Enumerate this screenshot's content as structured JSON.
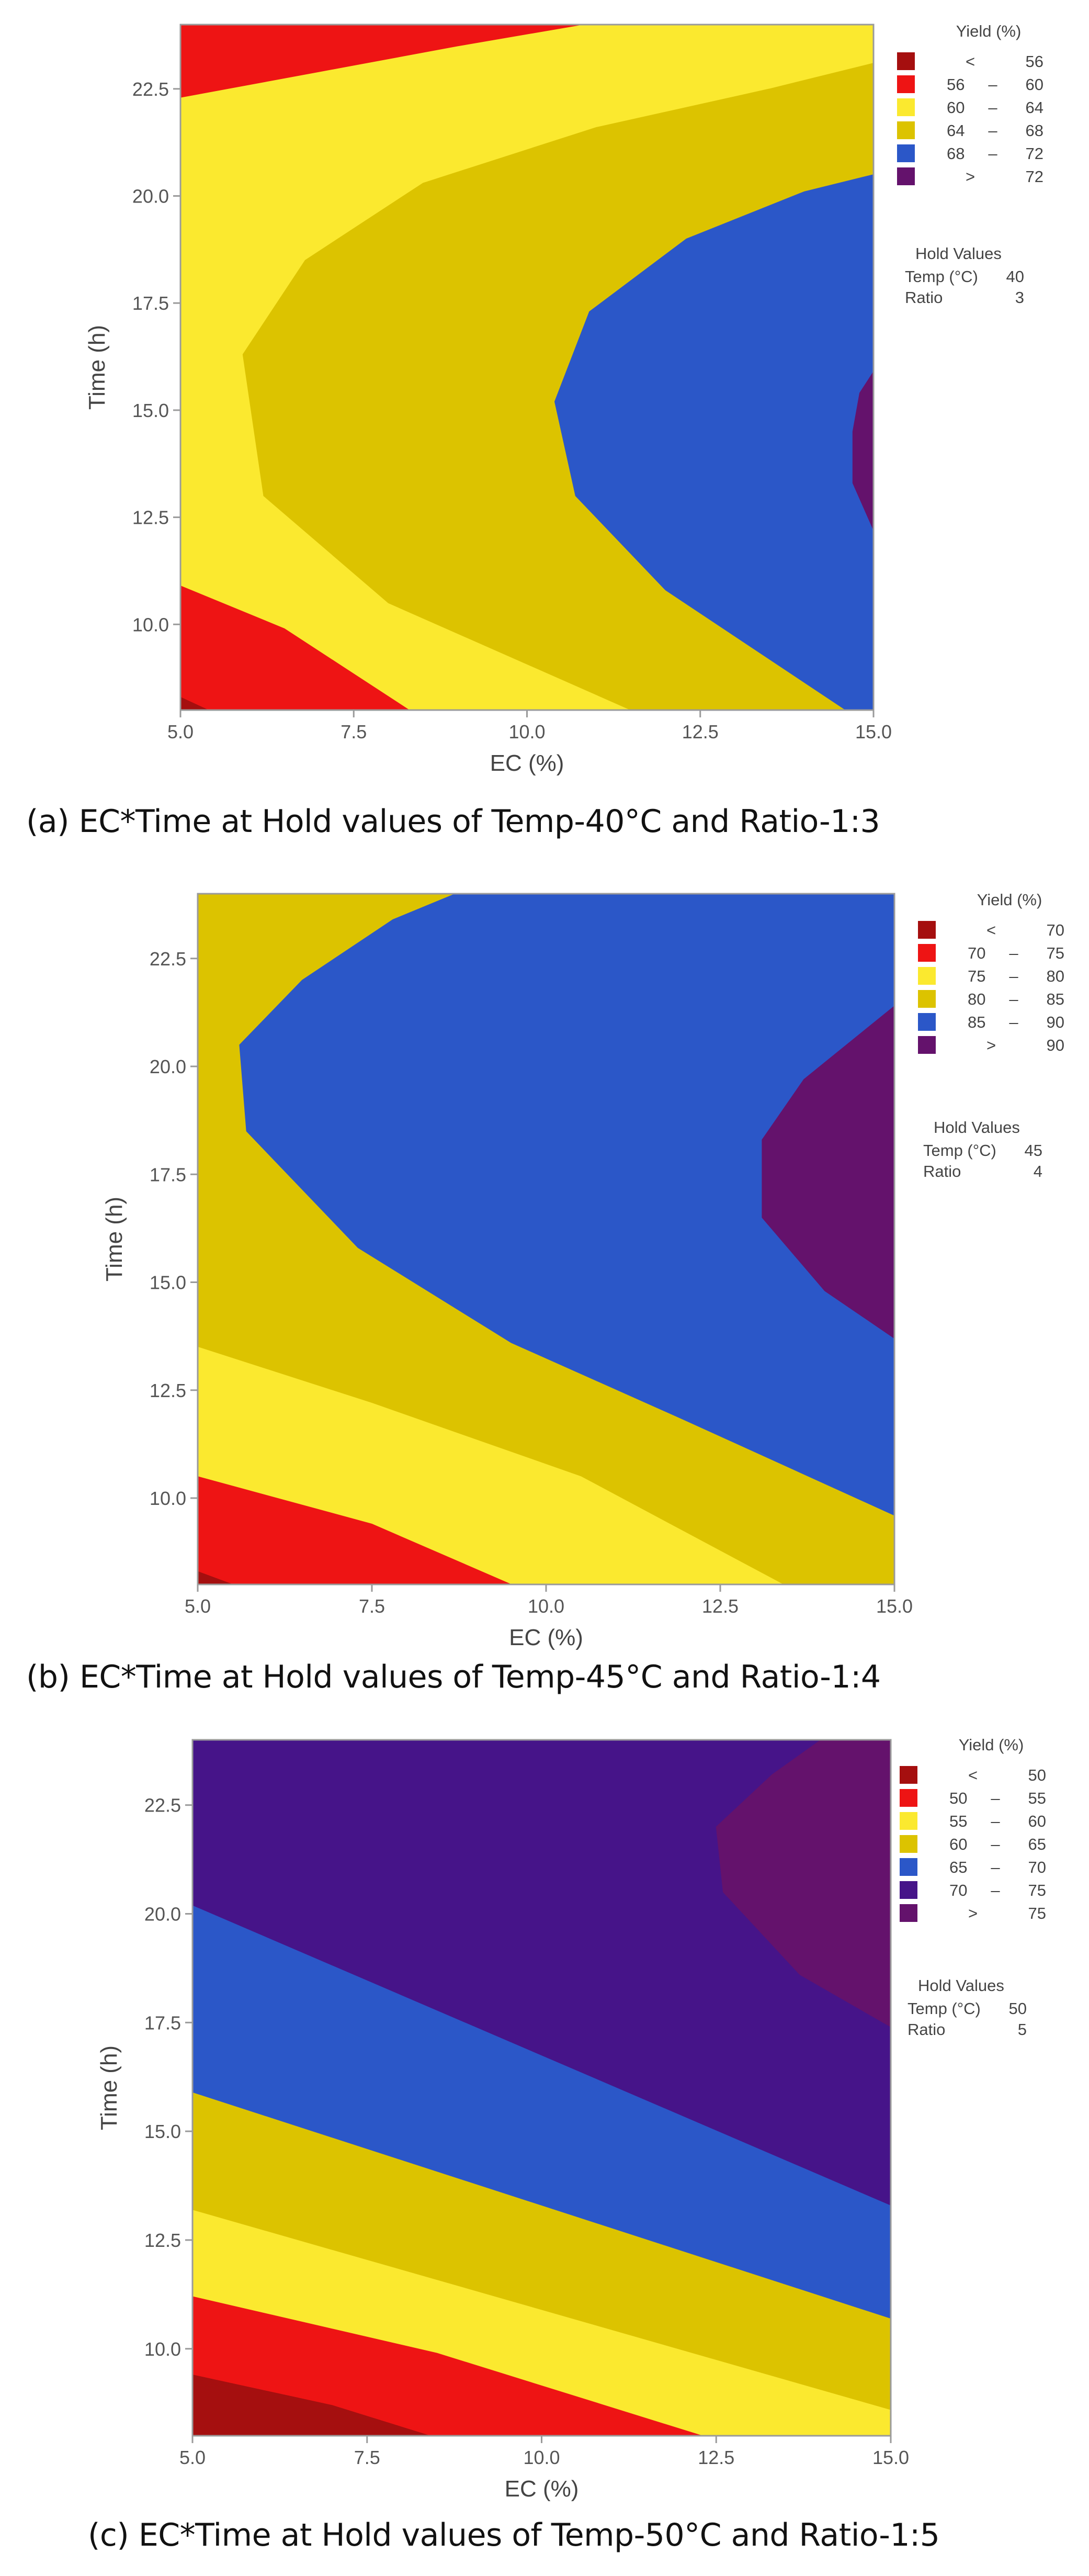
{
  "chart_data": [
    {
      "type": "contour",
      "panel": "a",
      "xlabel": "EC (%)",
      "ylabel": "Time (h)",
      "xlim": [
        5,
        15
      ],
      "ylim": [
        8,
        24
      ],
      "xticks": [
        "5.0",
        "7.5",
        "10.0",
        "12.5",
        "15.0"
      ],
      "yticks": [
        "10.0",
        "12.5",
        "15.0",
        "17.5",
        "20.0",
        "22.5"
      ],
      "legend": {
        "title": "Yield (%)",
        "position": "right",
        "items": [
          {
            "op": "<",
            "low": "",
            "high": "56",
            "color": "#a50f0f"
          },
          {
            "op": "",
            "low": "56",
            "high": "60",
            "color": "#ee1414"
          },
          {
            "op": "",
            "low": "60",
            "high": "64",
            "color": "#fbe92f"
          },
          {
            "op": "",
            "low": "64",
            "high": "68",
            "color": "#dcc300"
          },
          {
            "op": "",
            "low": "68",
            "high": "72",
            "color": "#2b57c8"
          },
          {
            "op": ">",
            "low": "",
            "high": "72",
            "color": "#64126c"
          }
        ]
      },
      "hold": {
        "title": "Hold Values",
        "rows": [
          {
            "label": "Temp (°C)",
            "value": "40"
          },
          {
            "label": "Ratio",
            "value": "3"
          }
        ]
      },
      "caption": "(a) EC*Time at Hold values of Temp-40°C and Ratio-1:3",
      "regions": [
        {
          "color": "#fbe92f",
          "boundary": [
            [
              5,
              8
            ],
            [
              15,
              8
            ],
            [
              15,
              24
            ],
            [
              5,
              24
            ]
          ]
        },
        {
          "color": "#ee1414",
          "boundary": [
            [
              5,
              24
            ],
            [
              5,
              22.3
            ],
            [
              7,
              22.9
            ],
            [
              9,
              23.5
            ],
            [
              10.8,
              24
            ]
          ]
        },
        {
          "color": "#ee1414",
          "boundary": [
            [
              5,
              8
            ],
            [
              5,
              10.9
            ],
            [
              6.5,
              9.9
            ],
            [
              8.3,
              8
            ]
          ]
        },
        {
          "color": "#a50f0f",
          "boundary": [
            [
              5,
              8
            ],
            [
              5,
              8.3
            ],
            [
              5.4,
              8
            ]
          ]
        },
        {
          "color": "#dcc300",
          "boundary": [
            [
              15,
              8
            ],
            [
              11.5,
              8
            ],
            [
              8,
              10.5
            ],
            [
              6.2,
              13
            ],
            [
              5.9,
              16.3
            ],
            [
              6.8,
              18.5
            ],
            [
              8.5,
              20.3
            ],
            [
              11,
              21.6
            ],
            [
              13.5,
              22.5
            ],
            [
              15,
              23.1
            ]
          ]
        },
        {
          "color": "#2b57c8",
          "boundary": [
            [
              15,
              8
            ],
            [
              14.6,
              8
            ],
            [
              12,
              10.8
            ],
            [
              10.7,
              13
            ],
            [
              10.4,
              15.2
            ],
            [
              10.9,
              17.3
            ],
            [
              12.3,
              19
            ],
            [
              14,
              20.1
            ],
            [
              15,
              20.5
            ]
          ]
        },
        {
          "color": "#64126c",
          "boundary": [
            [
              15,
              12.2
            ],
            [
              14.7,
              13.3
            ],
            [
              14.7,
              14.5
            ],
            [
              14.8,
              15.4
            ],
            [
              15,
              15.9
            ]
          ]
        }
      ]
    },
    {
      "type": "contour",
      "panel": "b",
      "xlabel": "EC (%)",
      "ylabel": "Time (h)",
      "xlim": [
        5,
        15
      ],
      "ylim": [
        8,
        24
      ],
      "xticks": [
        "5.0",
        "7.5",
        "10.0",
        "12.5",
        "15.0"
      ],
      "yticks": [
        "10.0",
        "12.5",
        "15.0",
        "17.5",
        "20.0",
        "22.5"
      ],
      "legend": {
        "title": "Yield (%)",
        "position": "right",
        "items": [
          {
            "op": "<",
            "low": "",
            "high": "70",
            "color": "#a50f0f"
          },
          {
            "op": "",
            "low": "70",
            "high": "75",
            "color": "#ee1414"
          },
          {
            "op": "",
            "low": "75",
            "high": "80",
            "color": "#fbe92f"
          },
          {
            "op": "",
            "low": "80",
            "high": "85",
            "color": "#dcc300"
          },
          {
            "op": "",
            "low": "85",
            "high": "90",
            "color": "#2b57c8"
          },
          {
            "op": ">",
            "low": "",
            "high": "90",
            "color": "#64126c"
          }
        ]
      },
      "hold": {
        "title": "Hold Values",
        "rows": [
          {
            "label": "Temp (°C)",
            "value": "45"
          },
          {
            "label": "Ratio",
            "value": "4"
          }
        ]
      },
      "caption": "(b) EC*Time at Hold values of Temp-45°C and Ratio-1:4",
      "regions": [
        {
          "color": "#dcc300",
          "boundary": [
            [
              5,
              8
            ],
            [
              15,
              8
            ],
            [
              15,
              24
            ],
            [
              5,
              24
            ]
          ]
        },
        {
          "color": "#fbe92f",
          "boundary": [
            [
              5,
              8
            ],
            [
              5,
              13.5
            ],
            [
              7.5,
              12.2
            ],
            [
              10.5,
              10.5
            ],
            [
              13.4,
              8
            ]
          ]
        },
        {
          "color": "#ee1414",
          "boundary": [
            [
              5,
              8
            ],
            [
              5,
              10.5
            ],
            [
              7.5,
              9.4
            ],
            [
              9.5,
              8
            ]
          ]
        },
        {
          "color": "#a50f0f",
          "boundary": [
            [
              5,
              8
            ],
            [
              5,
              8.3
            ],
            [
              5.5,
              8
            ]
          ]
        },
        {
          "color": "#2b57c8",
          "boundary": [
            [
              15,
              9.6
            ],
            [
              12,
              11.8
            ],
            [
              9.5,
              13.6
            ],
            [
              7.3,
              15.8
            ],
            [
              5.7,
              18.5
            ],
            [
              5.6,
              20.5
            ],
            [
              6.5,
              22
            ],
            [
              7.8,
              23.4
            ],
            [
              8.7,
              24
            ],
            [
              15,
              24
            ]
          ]
        },
        {
          "color": "#64126c",
          "boundary": [
            [
              15,
              13.7
            ],
            [
              14,
              14.8
            ],
            [
              13.1,
              16.5
            ],
            [
              13.1,
              18.3
            ],
            [
              13.7,
              19.7
            ],
            [
              15,
              21.4
            ]
          ]
        }
      ]
    },
    {
      "type": "contour",
      "panel": "c",
      "xlabel": "EC (%)",
      "ylabel": "Time (h)",
      "xlim": [
        5,
        15
      ],
      "ylim": [
        8,
        24
      ],
      "xticks": [
        "5.0",
        "7.5",
        "10.0",
        "12.5",
        "15.0"
      ],
      "yticks": [
        "10.0",
        "12.5",
        "15.0",
        "17.5",
        "20.0",
        "22.5"
      ],
      "legend": {
        "title": "Yield (%)",
        "position": "right",
        "items": [
          {
            "op": "<",
            "low": "",
            "high": "50",
            "color": "#a50f0f"
          },
          {
            "op": "",
            "low": "50",
            "high": "55",
            "color": "#ee1414"
          },
          {
            "op": "",
            "low": "55",
            "high": "60",
            "color": "#fbe92f"
          },
          {
            "op": "",
            "low": "60",
            "high": "65",
            "color": "#dcc300"
          },
          {
            "op": "",
            "low": "65",
            "high": "70",
            "color": "#2b57c8"
          },
          {
            "op": "",
            "low": "70",
            "high": "75",
            "color": "#461489"
          },
          {
            "op": ">",
            "low": "",
            "high": "75",
            "color": "#64126c"
          }
        ]
      },
      "hold": {
        "title": "Hold Values",
        "rows": [
          {
            "label": "Temp (°C)",
            "value": "50"
          },
          {
            "label": "Ratio",
            "value": "5"
          }
        ]
      },
      "caption": "(c) EC*Time at Hold values of Temp-50°C and Ratio-1:5",
      "regions": [
        {
          "color": "#fbe92f",
          "boundary": [
            [
              5,
              8
            ],
            [
              15,
              8
            ],
            [
              15,
              24
            ],
            [
              5,
              24
            ]
          ]
        },
        {
          "color": "#ee1414",
          "boundary": [
            [
              5,
              8
            ],
            [
              5,
              11.2
            ],
            [
              8.5,
              9.9
            ],
            [
              12.3,
              8
            ]
          ]
        },
        {
          "color": "#a50f0f",
          "boundary": [
            [
              5,
              8
            ],
            [
              5,
              9.4
            ],
            [
              7,
              8.7
            ],
            [
              8.4,
              8
            ]
          ]
        },
        {
          "color": "#dcc300",
          "boundary": [
            [
              5,
              13.2
            ],
            [
              15,
              8.6
            ],
            [
              15,
              24
            ],
            [
              5,
              24
            ]
          ]
        },
        {
          "color": "#2b57c8",
          "boundary": [
            [
              5,
              15.9
            ],
            [
              15,
              10.7
            ],
            [
              15,
              24
            ],
            [
              5,
              24
            ]
          ]
        },
        {
          "color": "#461489",
          "boundary": [
            [
              5,
              20.2
            ],
            [
              15,
              13.3
            ],
            [
              15,
              24
            ],
            [
              5,
              24
            ]
          ]
        },
        {
          "color": "#64126c",
          "boundary": [
            [
              15,
              17.4
            ],
            [
              13.7,
              18.6
            ],
            [
              12.6,
              20.5
            ],
            [
              12.5,
              22
            ],
            [
              13.3,
              23.2
            ],
            [
              14,
              24
            ],
            [
              15,
              24
            ]
          ]
        }
      ]
    }
  ]
}
